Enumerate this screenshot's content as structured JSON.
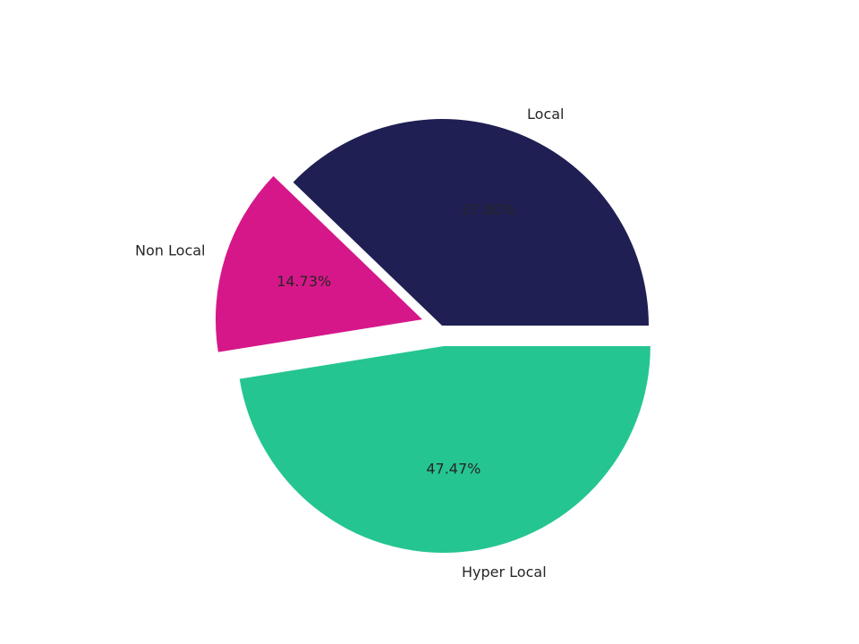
{
  "chart_data": {
    "type": "pie",
    "title": "",
    "start_angle_deg": 0,
    "direction": "counterclockwise",
    "slices": [
      {
        "label": "Local",
        "value": 37.8,
        "percent_label": "37.80%",
        "color": "#1f1f54",
        "exploded": false
      },
      {
        "label": "Non Local",
        "value": 14.73,
        "percent_label": "14.73%",
        "color": "#d61789",
        "exploded": true
      },
      {
        "label": "Hyper Local",
        "value": 47.47,
        "percent_label": "47.47%",
        "color": "#25c592",
        "exploded": true
      }
    ]
  }
}
